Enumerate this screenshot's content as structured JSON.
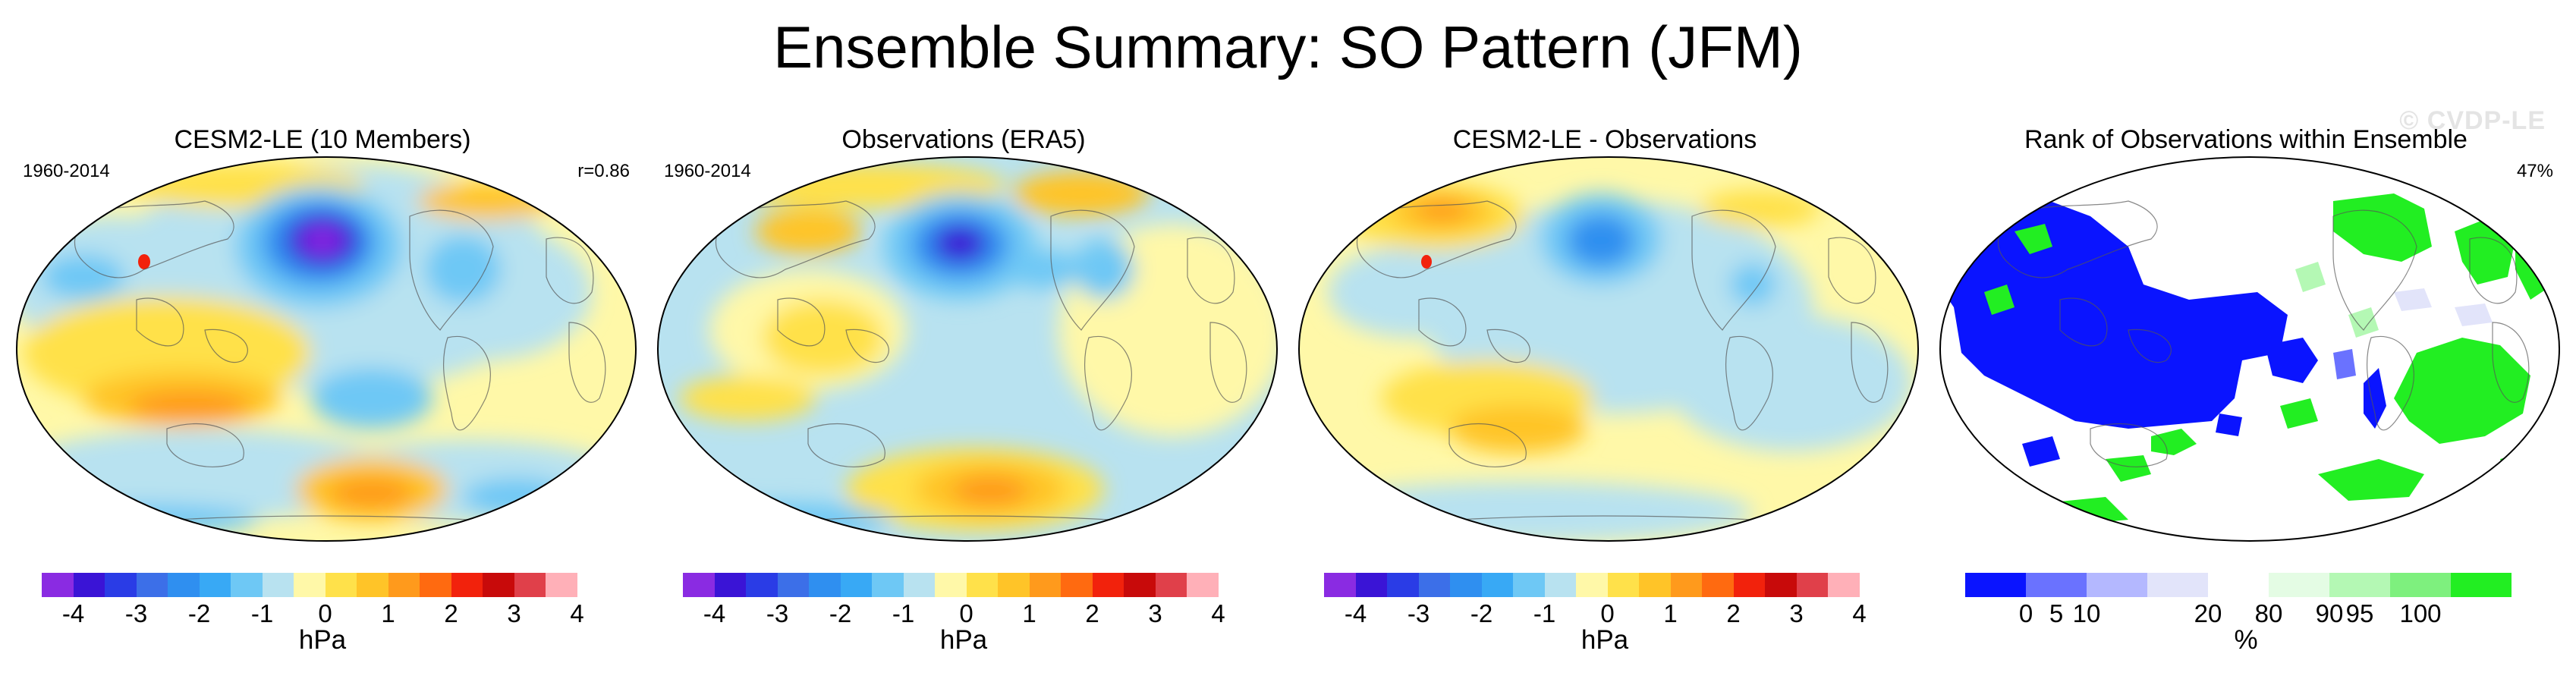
{
  "figure": {
    "title": "Ensemble Summary: SO Pattern (JFM)",
    "watermark": "© CVDP-LE"
  },
  "panels": [
    {
      "title": "CESM2-LE (10 Members)",
      "left_label": "1960-2014",
      "right_label": "r=0.86",
      "map_kind": "cesm"
    },
    {
      "title": "Observations (ERA5)",
      "left_label": "1960-2014",
      "right_label": "",
      "map_kind": "obs"
    },
    {
      "title": "CESM2-LE - Observations",
      "left_label": "",
      "right_label": "",
      "map_kind": "diff"
    },
    {
      "title": "Rank of Observations within Ensemble",
      "left_label": "",
      "right_label": "47%",
      "map_kind": "rank"
    }
  ],
  "colorbars": {
    "hpa": {
      "unit": "hPa",
      "colors": [
        "#8a2be2",
        "#3a14d6",
        "#2a3ce6",
        "#3c6fe8",
        "#2f8ff0",
        "#38a9f5",
        "#6ec8f5",
        "#b8e2f0",
        "#fff8a8",
        "#ffe14a",
        "#ffc428",
        "#ff9a1c",
        "#ff6a10",
        "#f2220c",
        "#c80a0a",
        "#e0404a",
        "#ffb0b8"
      ],
      "tick_labels": [
        "-4",
        "-3",
        "-2",
        "-1",
        "0",
        "1",
        "2",
        "3",
        "4"
      ]
    },
    "rank": {
      "unit": "%",
      "colors": [
        "#0a14ff",
        "#6a72ff",
        "#b4b8ff",
        "#e2e4fa",
        "#ffffff",
        "#e4fce4",
        "#b4f8b4",
        "#7ef07e",
        "#22ee22"
      ],
      "tick_labels": [
        "0",
        "5",
        "10",
        "20",
        "80",
        "90",
        "95",
        "100"
      ]
    }
  },
  "palette": {
    "neutral_land": "#fff8a8",
    "ocean_light": "#b8e2f0"
  }
}
